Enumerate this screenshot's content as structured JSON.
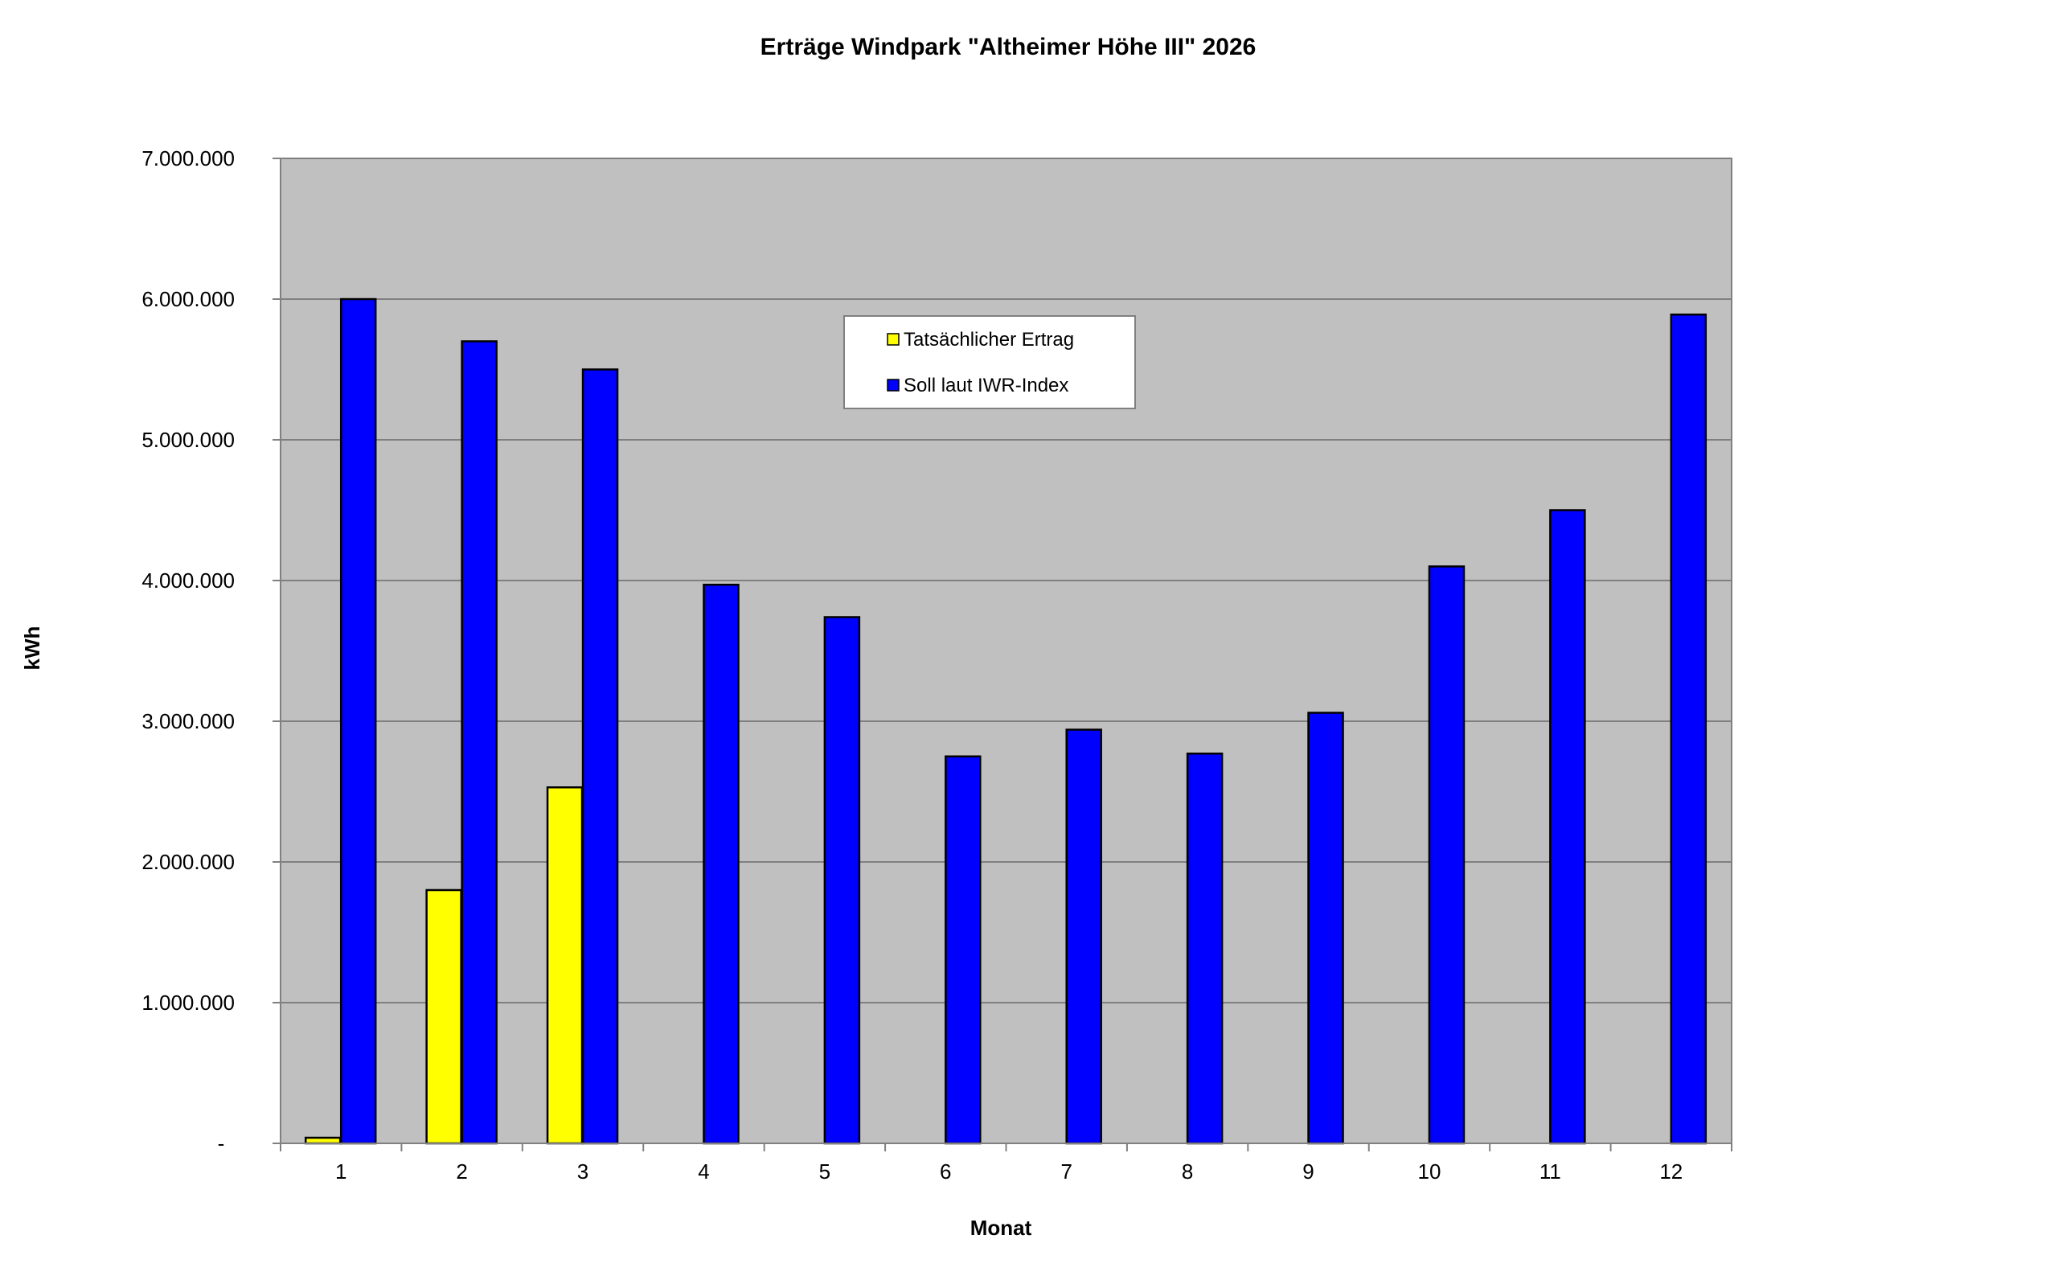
{
  "chart_data": {
    "type": "bar",
    "title": "Erträge Windpark \"Altheimer Höhe III\" 2026",
    "xlabel": "Monat",
    "ylabel": "kWh",
    "categories": [
      "1",
      "2",
      "3",
      "4",
      "5",
      "6",
      "7",
      "8",
      "9",
      "10",
      "11",
      "12"
    ],
    "ylim": [
      0,
      7000000
    ],
    "yticks": [
      0,
      1000000,
      2000000,
      3000000,
      4000000,
      5000000,
      6000000,
      7000000
    ],
    "ytick_labels": [
      "-",
      "1.000.000",
      "2.000.000",
      "3.000.000",
      "4.000.000",
      "5.000.000",
      "6.000.000",
      "7.000.000"
    ],
    "grid": true,
    "legend_position": "top-center",
    "plot_background": "#c0c0c0",
    "series": [
      {
        "name": "Tatsächlicher Ertrag",
        "color": "#ffff00",
        "values": [
          40000,
          1800000,
          2530000,
          null,
          null,
          null,
          null,
          null,
          null,
          null,
          null,
          null
        ]
      },
      {
        "name": "Soll laut IWR-Index",
        "color": "#0000ff",
        "values": [
          6000000,
          5700000,
          5500000,
          3970000,
          3740000,
          2750000,
          2940000,
          2770000,
          3060000,
          4100000,
          4500000,
          5890000
        ]
      }
    ]
  }
}
